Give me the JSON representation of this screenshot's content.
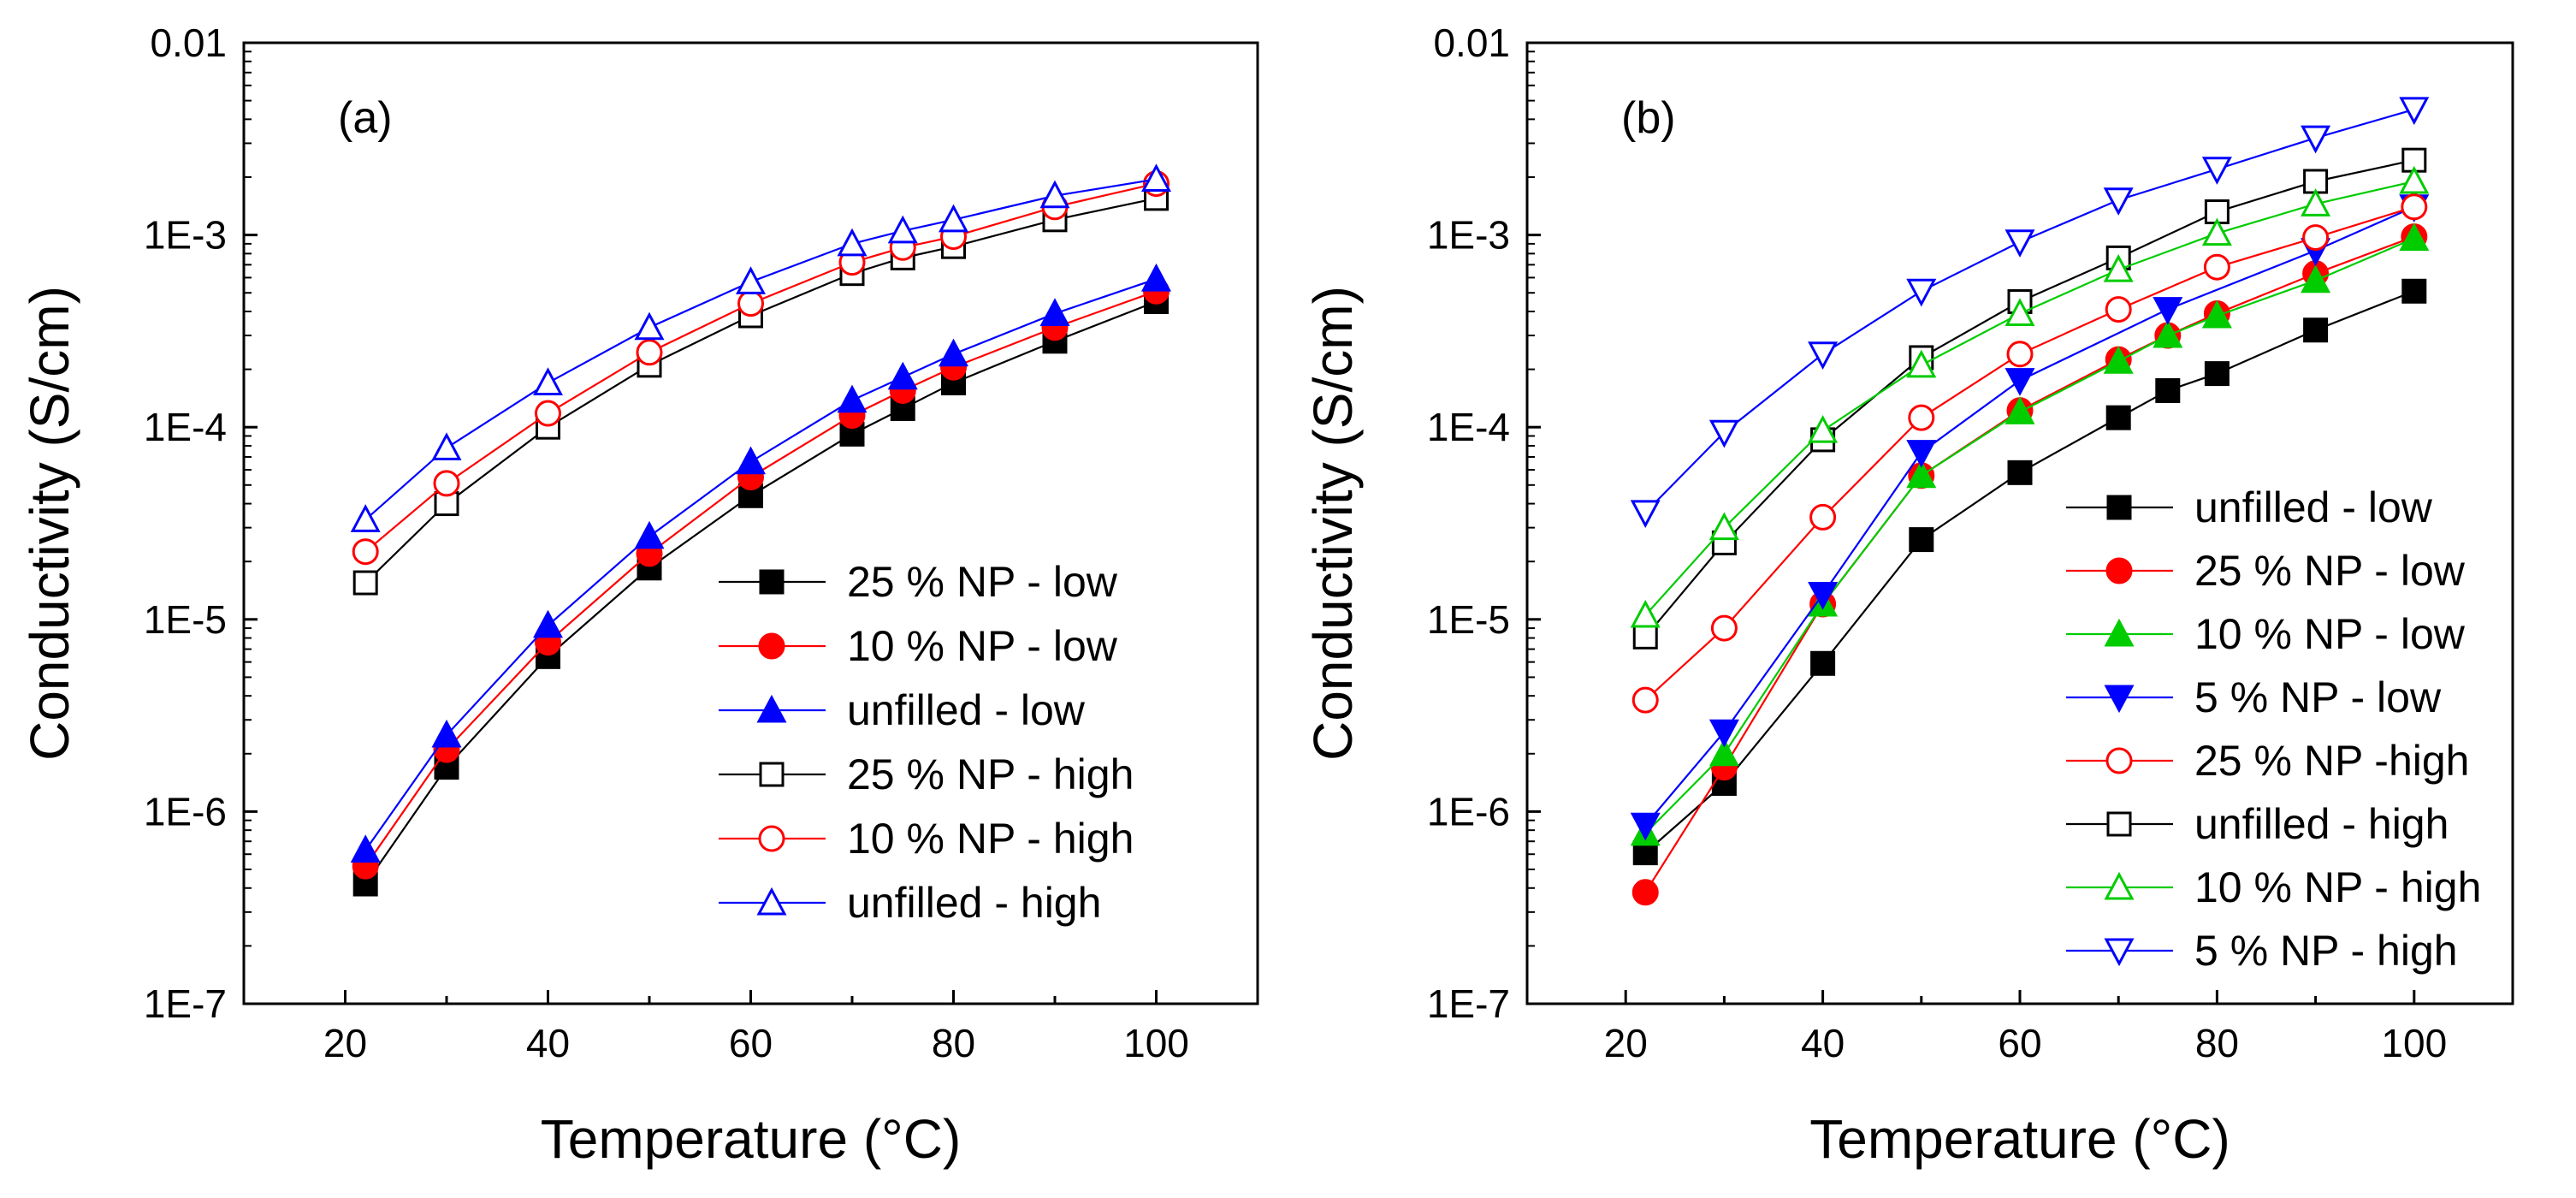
{
  "chart_data": [
    {
      "type": "line",
      "panel_label": "(a)",
      "xlabel": "Temperature (°C)",
      "ylabel": "Conductivity (S/cm)",
      "xlim": [
        10,
        110
      ],
      "ylim": [
        1e-07,
        0.01
      ],
      "yscale": "log",
      "xticks": [
        20,
        40,
        60,
        80,
        100
      ],
      "xtick_labels": [
        "20",
        "40",
        "60",
        "80",
        "100"
      ],
      "yticks": [
        1e-07,
        1e-06,
        1e-05,
        0.0001,
        0.001,
        0.01
      ],
      "ytick_labels": [
        "1E-7",
        "1E-6",
        "1E-5",
        "1E-4",
        "1E-3",
        "0.01"
      ],
      "legend_position": "lower-right",
      "series": [
        {
          "name": "25 % NP - low",
          "color": "#000000",
          "marker": "square",
          "filled": true,
          "x": [
            22,
            30,
            40,
            50,
            60,
            70,
            75,
            80,
            90,
            100
          ],
          "values": [
            4.2e-07,
            1.7e-06,
            6.4e-06,
            1.85e-05,
            4.4e-05,
            9.2e-05,
            0.000125,
            0.00017,
            0.00028,
            0.00045
          ]
        },
        {
          "name": "10 % NP - low",
          "color": "#ff0000",
          "marker": "circle",
          "filled": true,
          "x": [
            22,
            30,
            40,
            50,
            60,
            70,
            75,
            80,
            90,
            100
          ],
          "values": [
            5.2e-07,
            2.1e-06,
            7.6e-06,
            2.2e-05,
            5.5e-05,
            0.000115,
            0.000155,
            0.000205,
            0.00033,
            0.00051
          ]
        },
        {
          "name": "unfilled - low",
          "color": "#0000ff",
          "marker": "triangle-up",
          "filled": true,
          "x": [
            22,
            30,
            40,
            50,
            60,
            70,
            75,
            80,
            90,
            100
          ],
          "values": [
            6.3e-07,
            2.5e-06,
            9.3e-06,
            2.7e-05,
            6.6e-05,
            0.000138,
            0.000182,
            0.00024,
            0.00039,
            0.00059
          ]
        },
        {
          "name": "25 % NP - high",
          "color": "#000000",
          "marker": "square",
          "filled": false,
          "x": [
            22,
            30,
            40,
            50,
            60,
            70,
            75,
            80,
            90,
            100
          ],
          "values": [
            1.55e-05,
            4e-05,
            0.0001,
            0.00021,
            0.00038,
            0.00063,
            0.00076,
            0.00087,
            0.0012,
            0.00155
          ]
        },
        {
          "name": "10 % NP - high",
          "color": "#ff0000",
          "marker": "circle",
          "filled": false,
          "x": [
            22,
            30,
            40,
            50,
            60,
            70,
            75,
            80,
            90,
            100
          ],
          "values": [
            2.25e-05,
            5.1e-05,
            0.000118,
            0.000245,
            0.00044,
            0.00072,
            0.00086,
            0.00098,
            0.0014,
            0.00185
          ]
        },
        {
          "name": "unfilled - high",
          "color": "#0000ff",
          "marker": "triangle-up",
          "filled": false,
          "x": [
            22,
            30,
            40,
            50,
            60,
            70,
            75,
            80,
            90,
            100
          ],
          "values": [
            3.3e-05,
            7.8e-05,
            0.00017,
            0.00033,
            0.00057,
            0.0009,
            0.00105,
            0.0012,
            0.0016,
            0.00195
          ]
        }
      ]
    },
    {
      "type": "line",
      "panel_label": "(b)",
      "xlabel": "Temperature (°C)",
      "ylabel": "Conductivity (S/cm)",
      "xlim": [
        10,
        110
      ],
      "ylim": [
        1e-07,
        0.01
      ],
      "yscale": "log",
      "xticks": [
        20,
        40,
        60,
        80,
        100
      ],
      "xtick_labels": [
        "20",
        "40",
        "60",
        "80",
        "100"
      ],
      "yticks": [
        1e-07,
        1e-06,
        1e-05,
        0.0001,
        0.001,
        0.01
      ],
      "ytick_labels": [
        "1E-7",
        "1E-6",
        "1E-5",
        "1E-4",
        "1E-3",
        "0.01"
      ],
      "legend_position": "lower-right",
      "series": [
        {
          "name": "unfilled - low",
          "color": "#000000",
          "marker": "square",
          "filled": true,
          "x": [
            22,
            30,
            40,
            50,
            60,
            70,
            75,
            80,
            90,
            100
          ],
          "values": [
            6.1e-07,
            1.4e-06,
            5.9e-06,
            2.6e-05,
            5.8e-05,
            0.000112,
            0.000155,
            0.00019,
            0.00032,
            0.00051
          ]
        },
        {
          "name": "25 % NP - low",
          "color": "#ff0000",
          "marker": "circle",
          "filled": true,
          "x": [
            22,
            30,
            40,
            50,
            60,
            70,
            75,
            80,
            90,
            100
          ],
          "values": [
            3.8e-07,
            1.7e-06,
            1.2e-05,
            5.6e-05,
            0.000122,
            0.000225,
            0.0003,
            0.00039,
            0.00063,
            0.00098
          ]
        },
        {
          "name": "10 % NP - low",
          "color": "#00cc00",
          "marker": "triangle-up",
          "filled": true,
          "x": [
            22,
            30,
            40,
            50,
            60,
            70,
            75,
            80,
            90,
            100
          ],
          "values": [
            7.7e-07,
            2e-06,
            1.2e-05,
            5.6e-05,
            0.00012,
            0.00022,
            0.0003,
            0.00038,
            0.00058,
            0.00096
          ]
        },
        {
          "name": "5 % NP - low",
          "color": "#0000ff",
          "marker": "triangle-down",
          "filled": true,
          "x": [
            22,
            30,
            40,
            50,
            60,
            75,
            90,
            100
          ],
          "values": [
            8.5e-07,
            2.6e-06,
            1.35e-05,
            7.4e-05,
            0.000175,
            0.00041,
            0.00083,
            0.0014
          ]
        },
        {
          "name": "25 % NP -high",
          "color": "#ff0000",
          "marker": "circle",
          "filled": false,
          "x": [
            22,
            30,
            40,
            50,
            60,
            70,
            80,
            90,
            100
          ],
          "values": [
            3.8e-06,
            9e-06,
            3.4e-05,
            0.000112,
            0.00024,
            0.00041,
            0.00068,
            0.00097,
            0.0014
          ]
        },
        {
          "name": "unfilled - high",
          "color": "#000000",
          "marker": "square",
          "filled": false,
          "x": [
            22,
            30,
            40,
            50,
            60,
            70,
            80,
            90,
            100
          ],
          "values": [
            8.1e-06,
            2.5e-05,
            8.6e-05,
            0.00023,
            0.00045,
            0.00076,
            0.00132,
            0.0019,
            0.00245
          ]
        },
        {
          "name": "10 % NP - high",
          "color": "#00cc00",
          "marker": "triangle-up",
          "filled": false,
          "x": [
            22,
            30,
            40,
            50,
            60,
            70,
            80,
            90,
            100
          ],
          "values": [
            1.05e-05,
            3e-05,
            9.6e-05,
            0.00021,
            0.00039,
            0.00066,
            0.00102,
            0.00145,
            0.0019
          ]
        },
        {
          "name": "5 % NP - high",
          "color": "#0000ff",
          "marker": "triangle-down",
          "filled": false,
          "x": [
            22,
            30,
            40,
            50,
            60,
            70,
            80,
            90,
            100
          ],
          "values": [
            3.6e-05,
            9.4e-05,
            0.00024,
            0.00051,
            0.00092,
            0.00152,
            0.0022,
            0.0032,
            0.0045
          ]
        }
      ]
    }
  ]
}
